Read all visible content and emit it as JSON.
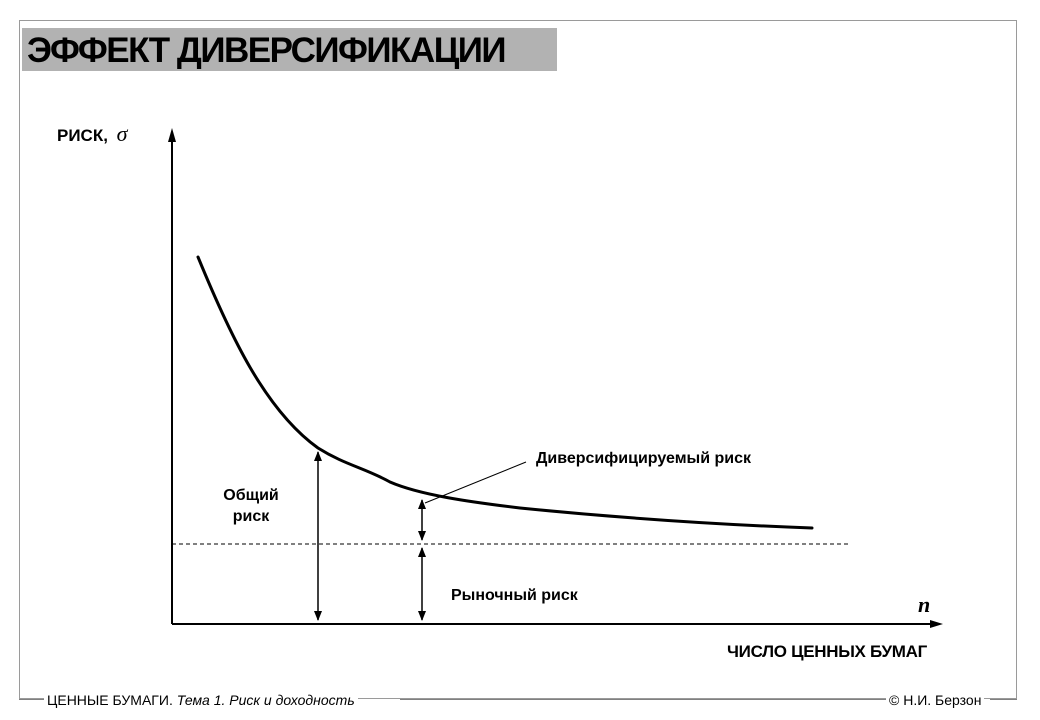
{
  "slide": {
    "title": "ЭФФЕКТ ДИВЕРСИФИКАЦИИ",
    "y_axis_label": "РИСК,",
    "y_axis_symbol": "σ",
    "x_axis_label": "ЧИСЛО ЦЕННЫХ БУМАГ",
    "x_axis_symbol": "n",
    "total_risk_label_line1": "Общий",
    "total_risk_label_line2": "риск",
    "diversifiable_risk_label": "Диверсифицируемый риск",
    "market_risk_label": "Рыночный риск"
  },
  "footer": {
    "left_main": "ЦЕННЫЕ БУМАГИ.",
    "left_topic": "Тема 1. Риск и доходность",
    "right": "© Н.И. Берзон"
  },
  "colors": {
    "title_background": "#b2b2b2",
    "frame": "#9a9a9a",
    "ink": "#000000"
  }
}
